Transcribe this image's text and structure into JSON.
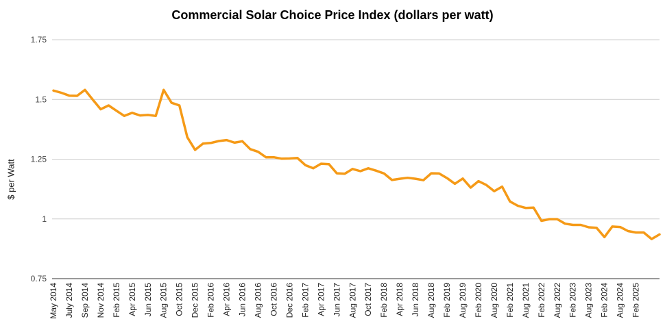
{
  "chart_data": {
    "type": "line",
    "title": "Commercial Solar Choice Price Index (dollars per watt)",
    "xlabel": "",
    "ylabel": "$ per Watt",
    "ylim": [
      0.75,
      1.75
    ],
    "yticks": [
      "0.75",
      "1",
      "1.25",
      "1.5",
      "1.75"
    ],
    "ytick_values": [
      0.75,
      1,
      1.25,
      1.5,
      1.75
    ],
    "grid": true,
    "line_color": "#F59A17",
    "x_tick_labels": [
      "May 2014",
      "July 2014",
      "Sep 2014",
      "Nov 2014",
      "Feb 2015",
      "Apr 2015",
      "Jun 2015",
      "Aug 2015",
      "Oct 2015",
      "Dec 2015",
      "Feb 2016",
      "Apr 2016",
      "Jun 2016",
      "Aug 2016",
      "Oct 2016",
      "Dec 2016",
      "Feb 2017",
      "Apr 2017",
      "Jun 2017",
      "Aug 2017",
      "Oct 2017",
      "Feb 2018",
      "Apr 2018",
      "Jun 2018",
      "Aug 2018",
      "Feb 2019",
      "Aug 2019",
      "Feb 2020",
      "Aug 2020",
      "Feb 2021",
      "Aug 2021",
      "Feb 2022",
      "Aug 2022",
      "Feb 2023",
      "Aug 2023",
      "Feb 2024",
      "Aug 2024",
      "Feb 2025"
    ],
    "x_tick_indices": [
      0,
      2,
      4,
      6,
      8,
      10,
      12,
      14,
      16,
      18,
      20,
      22,
      24,
      26,
      28,
      30,
      32,
      34,
      36,
      38,
      40,
      42,
      44,
      46,
      48,
      50,
      52,
      54,
      56,
      58,
      60,
      62,
      64,
      66,
      68,
      70,
      72,
      74
    ],
    "values": [
      1.537,
      1.528,
      1.516,
      1.515,
      1.54,
      1.499,
      1.459,
      1.475,
      1.453,
      1.431,
      1.444,
      1.433,
      1.435,
      1.431,
      1.54,
      1.486,
      1.475,
      1.342,
      1.289,
      1.315,
      1.318,
      1.326,
      1.33,
      1.319,
      1.325,
      1.292,
      1.281,
      1.258,
      1.258,
      1.252,
      1.253,
      1.255,
      1.225,
      1.212,
      1.231,
      1.229,
      1.191,
      1.189,
      1.209,
      1.2,
      1.212,
      1.202,
      1.19,
      1.163,
      1.168,
      1.172,
      1.168,
      1.162,
      1.191,
      1.19,
      1.171,
      1.147,
      1.169,
      1.131,
      1.158,
      1.142,
      1.116,
      1.135,
      1.073,
      1.055,
      1.046,
      1.047,
      0.992,
      0.999,
      0.999,
      0.98,
      0.975,
      0.975,
      0.965,
      0.963,
      0.924,
      0.968,
      0.966,
      0.949,
      0.943,
      0.943,
      0.916,
      0.935
    ]
  }
}
